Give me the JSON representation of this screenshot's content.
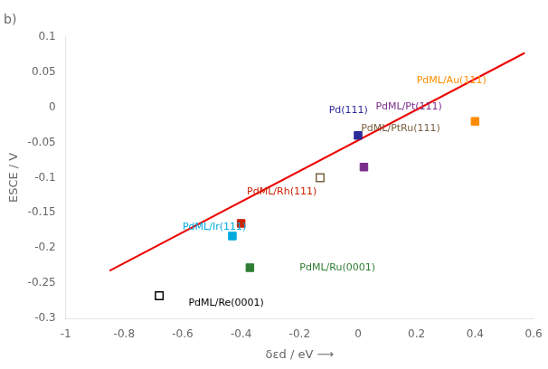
{
  "chart_data": {
    "type": "scatter",
    "title": "b)",
    "x_label": "δεd / eV ⟶",
    "y_label": "ESCE / V",
    "xlim": [
      -1.0,
      0.6
    ],
    "ylim": [
      -0.3,
      0.1
    ],
    "xticks": [
      -1.0,
      -0.8,
      -0.6,
      -0.4,
      -0.2,
      0.0,
      0.2,
      0.4,
      0.6
    ],
    "yticks": [
      -0.3,
      -0.25,
      -0.2,
      -0.15,
      -0.1,
      -0.05,
      0.0,
      0.05,
      0.1
    ],
    "grid": false,
    "series": [
      {
        "type": "line",
        "color": "#EE0000",
        "x": [
          -0.85,
          0.57
        ],
        "values": [
          -0.2323,
          0.07726
        ]
      },
      {
        "type": "scatter",
        "marker": "square",
        "x": [
          0.4,
          0.0,
          0.02,
          -0.4,
          -0.43,
          -0.37
        ],
        "values": [
          -0.02,
          -0.04,
          -0.085,
          -0.165,
          -0.183,
          -0.228
        ],
        "colors": [
          "#FF8C00",
          "#2B2B9A",
          "#7B2D8B",
          "#CC2200",
          "#00AADD",
          "#2E7D32"
        ]
      },
      {
        "type": "scatter",
        "marker": "square-open",
        "x": [
          -0.13,
          -0.68
        ],
        "values": [
          -0.1,
          -0.268
        ],
        "colors": [
          "#7B6040",
          "#000000"
        ]
      }
    ],
    "annotations": [
      {
        "text": "PdML/Au(111)",
        "x": 0.2,
        "y": 0.038,
        "color": "#FF8C00"
      },
      {
        "text": "Pd(111)",
        "x": -0.1,
        "y": -0.005,
        "color": "#2B2B9A"
      },
      {
        "text": "PdML/Pt(111)",
        "x": 0.06,
        "y": 0.0,
        "color": "#7B2D8B"
      },
      {
        "text": "PdML/PtRu(111)",
        "x": 0.01,
        "y": -0.03,
        "color": "#7B6040"
      },
      {
        "text": "PdML/Rh(111)",
        "x": -0.38,
        "y": -0.12,
        "color": "#CC2200"
      },
      {
        "text": "PdML/Ir(111)",
        "x": -0.6,
        "y": -0.17,
        "color": "#00AADD"
      },
      {
        "text": "PdML/Ru(0001)",
        "x": -0.2,
        "y": -0.228,
        "color": "#2E7D32"
      },
      {
        "text": "PdML/Re(0001)",
        "x": -0.58,
        "y": -0.278,
        "color": "#000000"
      }
    ]
  }
}
